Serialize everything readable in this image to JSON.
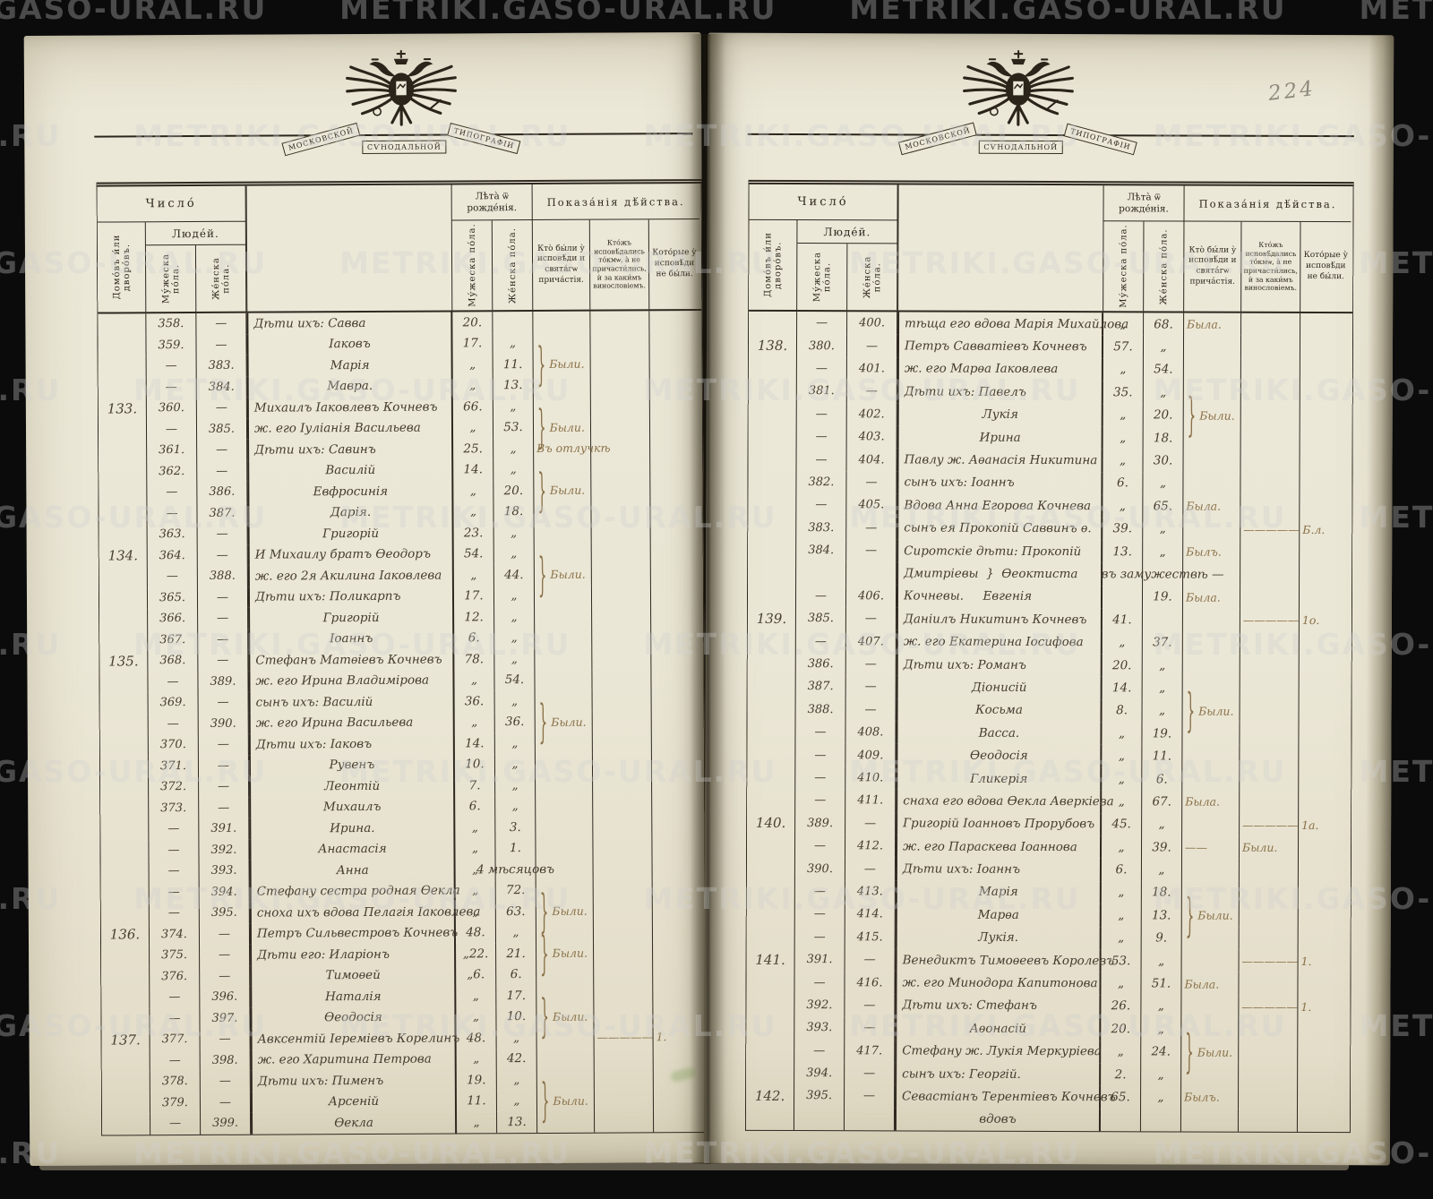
{
  "watermark": {
    "text": "METRIKI.GASO-URAL.RU"
  },
  "page_number": "224",
  "emblem": {
    "ribbon": [
      "МОСКОВСКОЙ",
      "СѴНОДАЛЬНОЙ",
      "ТИПОГРАФІИ"
    ]
  },
  "header": {
    "chislo": "Число́",
    "lyudey": "Люде́й.",
    "domov": "Домо́въ и́ли дворо́въ.",
    "muzheska": "Му́жеска по́ла.",
    "zhenska": "Же́нска по́ла.",
    "leta": "Лѣта̀ ѿ рожде́нія.",
    "pokazaniya": "Показа́нія дѣ́йства.",
    "col_confessed": "Кто̀ бы́ли у̀ исповѣ́ди и свята́гѡ прича́стія.",
    "col_confessed_only": "Кто́жъ исповѣ́дались то́кмѡ, а̀ не причасти́лись, ѝ за каки́мъ винословіемъ.",
    "col_absent": "Кото́рые у̀ исповѣ́ди не бы́ли."
  },
  "pages": [
    {
      "rows": [
        {
          "m": "358.",
          "f": "—",
          "n": "Дѣти ихъ: Савва",
          "ma": "20."
        },
        {
          "m": "359.",
          "f": "—",
          "n": "Іаковъ",
          "i": "c",
          "ma": "17.",
          "fa": "„"
        },
        {
          "m": "—",
          "f": "383.",
          "n": "Марія",
          "i": "c",
          "ma": "„",
          "fa": "11.",
          "b": "1",
          "n1": "Были."
        },
        {
          "m": "—",
          "f": "384.",
          "n": "Мавра.",
          "i": "c",
          "ma": "„",
          "fa": "13."
        },
        {
          "h": "133.",
          "m": "360.",
          "f": "—",
          "n": "Михаилъ Іаковлевъ Кочневъ",
          "ma": "66.",
          "fa": "„"
        },
        {
          "m": "—",
          "f": "385.",
          "n": "ж. его Іуліанія Васильева",
          "ma": "„",
          "fa": "53.",
          "b": "1",
          "n1": "Были."
        },
        {
          "m": "361.",
          "f": "—",
          "n": "Дѣти ихъ: Савинъ",
          "ma": "25.",
          "fa": "„",
          "n1": "Въ отлучкѣ"
        },
        {
          "m": "362.",
          "f": "—",
          "n": "Василій",
          "i": "c",
          "ma": "14.",
          "fa": "„"
        },
        {
          "m": "—",
          "f": "386.",
          "n": "Евфросинія",
          "i": "c",
          "ma": "„",
          "fa": "20.",
          "b": "1",
          "n1": "Были."
        },
        {
          "m": "—",
          "f": "387.",
          "n": "Дарія.",
          "i": "c",
          "ma": "„",
          "fa": "18."
        },
        {
          "m": "363.",
          "f": "—",
          "n": "Григорій",
          "i": "c",
          "ma": "23.",
          "fa": "„"
        },
        {
          "h": "134.",
          "m": "364.",
          "f": "—",
          "n": "И Михаилу братъ Ѳеодоръ",
          "ma": "54.",
          "fa": "„"
        },
        {
          "m": "—",
          "f": "388.",
          "n": "ж. его 2я Акилина Іаковлева",
          "ma": "„",
          "fa": "44.",
          "b": "1",
          "n1": "Были."
        },
        {
          "m": "365.",
          "f": "—",
          "n": "Дѣти ихъ: Поликарпъ",
          "ma": "17.",
          "fa": "„"
        },
        {
          "m": "366.",
          "f": "—",
          "n": "Григорій",
          "i": "c",
          "ma": "12.",
          "fa": "„"
        },
        {
          "m": "367.",
          "f": "—",
          "n": "Іоаннъ",
          "i": "c",
          "ma": "6.",
          "fa": "„"
        },
        {
          "h": "135.",
          "m": "368.",
          "f": "—",
          "n": "Стефанъ Матѳіевъ Кочневъ",
          "ma": "78.",
          "fa": "„"
        },
        {
          "m": "—",
          "f": "389.",
          "n": "ж. его Ирина Владимірова",
          "ma": "„",
          "fa": "54."
        },
        {
          "m": "369.",
          "f": "—",
          "n": "сынъ ихъ: Василій",
          "ma": "36.",
          "fa": "„"
        },
        {
          "m": "—",
          "f": "390.",
          "n": "ж. его Ирина Васильева",
          "ma": "„",
          "fa": "36.",
          "b": "1",
          "n1": "Были."
        },
        {
          "m": "370.",
          "f": "—",
          "n": "Дѣти ихъ: Іаковъ",
          "ma": "14.",
          "fa": "„"
        },
        {
          "m": "371.",
          "f": "—",
          "n": "Рувенъ",
          "i": "c",
          "ma": "10.",
          "fa": "„"
        },
        {
          "m": "372.",
          "f": "—",
          "n": "Леонтій",
          "i": "c",
          "ma": "7.",
          "fa": "„"
        },
        {
          "m": "373.",
          "f": "—",
          "n": "Михаилъ",
          "i": "c",
          "ma": "6.",
          "fa": "„"
        },
        {
          "m": "—",
          "f": "391.",
          "n": "Ирина.",
          "i": "c",
          "ma": "„",
          "fa": "3."
        },
        {
          "m": "—",
          "f": "392.",
          "n": "Анастасія",
          "i": "c",
          "ma": "„",
          "fa": "1."
        },
        {
          "m": "—",
          "f": "393.",
          "n": "Анна",
          "i": "c",
          "ma": "„",
          "fa": "4 мѣсяцовъ"
        },
        {
          "m": "—",
          "f": "394.",
          "n": "Стефану сестра родная Ѳекла",
          "ma": "„",
          "fa": "72."
        },
        {
          "m": "—",
          "f": "395.",
          "n": "сноха ихъ вдова Пелагія Іаковлева",
          "ma": "„",
          "fa": "63.",
          "b": "1",
          "n1": "Были."
        },
        {
          "h": "136.",
          "m": "374.",
          "f": "—",
          "n": "Петръ Сильвестровъ Кочневъ",
          "ma": "48.",
          "fa": "„"
        },
        {
          "m": "375.",
          "f": "—",
          "n": "Дѣти его: Иларіонъ",
          "ma": "„22.",
          "fa": "21.",
          "b": "1",
          "n1": "Были."
        },
        {
          "m": "376.",
          "f": "—",
          "n": "Тимоѳей",
          "i": "c",
          "ma": "„6.",
          "fa": "6."
        },
        {
          "m": "—",
          "f": "396.",
          "n": "Наталія",
          "i": "c",
          "ma": "„",
          "fa": "17."
        },
        {
          "m": "—",
          "f": "397.",
          "n": "Ѳеодосія",
          "i": "c",
          "ma": "„",
          "fa": "10.",
          "b": "1",
          "n1": "Были."
        },
        {
          "h": "137.",
          "m": "377.",
          "f": "—",
          "n": "Авксентій Іереміевъ Корелинъ",
          "ma": "48.",
          "fa": "„",
          "n2": "—————",
          "n3": "1."
        },
        {
          "m": "—",
          "f": "398.",
          "n": "ж. его Харитина Петрова",
          "ma": "„",
          "fa": "42."
        },
        {
          "m": "378.",
          "f": "—",
          "n": "Дѣти ихъ: Пименъ",
          "ma": "19.",
          "fa": "„"
        },
        {
          "m": "379.",
          "f": "—",
          "n": "Арсеній",
          "i": "c",
          "ma": "11.",
          "fa": "„",
          "b": "1",
          "n1": "Были."
        },
        {
          "m": "—",
          "f": "399.",
          "n": "Ѳекла",
          "i": "c",
          "ma": "„",
          "fa": "13."
        }
      ]
    },
    {
      "rows": [
        {
          "m": "—",
          "f": "400.",
          "n": "тѣща его вдова Марія Михайлова",
          "ma": "„",
          "fa": "68.",
          "n1": "Была."
        },
        {
          "h": "138.",
          "m": "380.",
          "f": "—",
          "n": "Петръ Савватіевъ Кочневъ",
          "ma": "57.",
          "fa": "„"
        },
        {
          "m": "—",
          "f": "401.",
          "n": "ж. его Марѳа Іаковлева",
          "ma": "„",
          "fa": "54."
        },
        {
          "m": "381.",
          "f": "—",
          "n": "Дѣти ихъ: Павелъ",
          "ma": "35.",
          "fa": "„"
        },
        {
          "m": "—",
          "f": "402.",
          "n": "Лукія",
          "i": "c",
          "ma": "„",
          "fa": "20.",
          "b": "1",
          "n1": "Были."
        },
        {
          "m": "—",
          "f": "403.",
          "n": "Ирина",
          "i": "c",
          "ma": "„",
          "fa": "18."
        },
        {
          "m": "—",
          "f": "404.",
          "n": "Павлу ж. Аѳанасія Никитина",
          "ma": "„",
          "fa": "30."
        },
        {
          "m": "382.",
          "f": "—",
          "n": "сынъ ихъ: Іоаннъ",
          "ma": "6.",
          "fa": "„"
        },
        {
          "m": "—",
          "f": "405.",
          "n": "Вдова Анна Егорова Кочнева",
          "ma": "„",
          "fa": "65.",
          "n1": "Была."
        },
        {
          "m": "383.",
          "f": "—",
          "n": "сынъ ея Прокопій Саввинъ ѳ.",
          "ma": "39.",
          "fa": "„",
          "n2": "—————",
          "n3": "Б.л."
        },
        {
          "m": "384.",
          "f": "—",
          "n": "Сиротскіе дѣти: Прокопій",
          "ma": "13.",
          "fa": "„",
          "n1": "Былъ."
        },
        {
          "n": "Дмитріевы  }  Ѳеоктиста",
          "fa": "въ замужествѣ —"
        },
        {
          "m": "—",
          "f": "406.",
          "n": "Кочневы.     Евгенія",
          "fa": "19.",
          "n1": "Была."
        },
        {
          "h": "139.",
          "m": "385.",
          "f": "—",
          "n": "Даніилъ Никитинъ Кочневъ",
          "ma": "41.",
          "n2": "—————",
          "n3": "1о."
        },
        {
          "m": "—",
          "f": "407.",
          "n": "ж. его Екатерина Іосифова",
          "ma": "„",
          "fa": "37."
        },
        {
          "m": "386.",
          "f": "—",
          "n": "Дѣти ихъ: Романъ",
          "ma": "20.",
          "fa": "„"
        },
        {
          "m": "387.",
          "f": "—",
          "n": "Діонисій",
          "i": "c",
          "ma": "14.",
          "fa": "„"
        },
        {
          "m": "388.",
          "f": "—",
          "n": "Косьма",
          "i": "c",
          "ma": "8.",
          "fa": "„",
          "b": "1",
          "n1": "Были."
        },
        {
          "m": "—",
          "f": "408.",
          "n": "Васса.",
          "i": "c",
          "ma": "„",
          "fa": "19."
        },
        {
          "m": "—",
          "f": "409.",
          "n": "Ѳеодосія",
          "i": "c",
          "ma": "„",
          "fa": "11."
        },
        {
          "m": "—",
          "f": "410.",
          "n": "Гликерія",
          "i": "c",
          "ma": "„",
          "fa": "6."
        },
        {
          "m": "—",
          "f": "411.",
          "n": "снаха его вдова Ѳекла Аверкіева",
          "ma": "„",
          "fa": "67.",
          "n1": "Была."
        },
        {
          "h": "140.",
          "m": "389.",
          "f": "—",
          "n": "Григорій Іоанновъ Прорубовъ",
          "ma": "45.",
          "fa": "„",
          "n2": "—————",
          "n3": "1а."
        },
        {
          "m": "—",
          "f": "412.",
          "n": "ж. его Параскева Іоаннова",
          "ma": "„",
          "fa": "39.",
          "n1": "——",
          "n2": "Были."
        },
        {
          "m": "390.",
          "f": "—",
          "n": "Дѣти ихъ: Іоаннъ",
          "ma": "6.",
          "fa": "„"
        },
        {
          "m": "—",
          "f": "413.",
          "n": "Марія",
          "i": "c",
          "ma": "„",
          "fa": "18."
        },
        {
          "m": "—",
          "f": "414.",
          "n": "Марѳа",
          "i": "c",
          "ma": "„",
          "fa": "13.",
          "b": "1",
          "n1": "Были."
        },
        {
          "m": "—",
          "f": "415.",
          "n": "Лукія.",
          "i": "c",
          "ma": "„",
          "fa": "9."
        },
        {
          "h": "141.",
          "m": "391.",
          "f": "—",
          "n": "Венедиктъ Тимоѳеевъ Королевъ",
          "ma": "53.",
          "fa": "„",
          "n2": "—————",
          "n3": "1."
        },
        {
          "m": "—",
          "f": "416.",
          "n": "ж. его Минодора Капитонова",
          "ma": "„",
          "fa": "51.",
          "n1": "Была."
        },
        {
          "m": "392.",
          "f": "—",
          "n": "Дѣти ихъ: Стефанъ",
          "ma": "26.",
          "fa": "„",
          "n2": "—————",
          "n3": "1."
        },
        {
          "m": "393.",
          "f": "—",
          "n": "Аѳонасій",
          "i": "c",
          "ma": "20.",
          "fa": "„"
        },
        {
          "m": "—",
          "f": "417.",
          "n": "Стефану ж. Лукія Меркуріева",
          "ma": "„",
          "fa": "24.",
          "b": "1",
          "n1": "Были."
        },
        {
          "m": "394.",
          "f": "—",
          "n": "сынъ ихъ: Георгій.",
          "ma": "2.",
          "fa": "„"
        },
        {
          "h": "142.",
          "m": "395.",
          "f": "—",
          "n": "Севастіанъ Терентіевъ Кочневъ",
          "ma": "65.",
          "fa": "„",
          "n1": "Былъ."
        },
        {
          "n": "вдовъ",
          "i": "c"
        }
      ]
    }
  ]
}
